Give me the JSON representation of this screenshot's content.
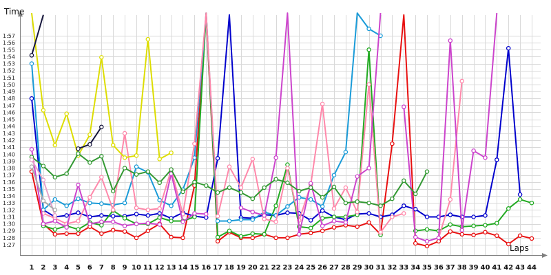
{
  "chart_data": {
    "type": "line",
    "xlabel": "Laps",
    "ylabel": "Time",
    "xlim": [
      1,
      44
    ],
    "ylim": [
      "1:27",
      "1:58"
    ],
    "grid": true,
    "legend": "none",
    "x_ticks": [
      "1",
      "2",
      "3",
      "4",
      "5",
      "6",
      "7",
      "8",
      "9",
      "10",
      "11",
      "12",
      "13",
      "14",
      "15",
      "16",
      "17",
      "18",
      "19",
      "20",
      "21",
      "22",
      "23",
      "24",
      "25",
      "26",
      "27",
      "28",
      "29",
      "30",
      "31",
      "32",
      "33",
      "34",
      "35",
      "36",
      "37",
      "38",
      "39",
      "40",
      "41",
      "42",
      "43",
      "44"
    ],
    "y_ticks": [
      "1:27",
      "1:28",
      "1:29",
      "1:30",
      "1:31",
      "1:32",
      "1:33",
      "1:34",
      "1:35",
      "1:36",
      "1:37",
      "1:38",
      "1:39",
      "1:40",
      "1:41",
      "1:42",
      "1:43",
      "1:44",
      "1:45",
      "1:46",
      "1:47",
      "1:48",
      "1:49",
      "1:50",
      "1:51",
      "1:52",
      "1:53",
      "1:54",
      "1:55",
      "1:56",
      "1:57"
    ],
    "series": [
      {
        "color": "#e81010",
        "values": [
          97.5,
          90,
          88.5,
          88.6,
          88.6,
          89.6,
          88.6,
          89.1,
          88.9,
          88,
          89,
          90,
          88.1,
          88,
          95.5,
          120,
          87.5,
          88.8,
          88,
          88,
          88.5,
          88,
          88,
          88.5,
          88.7,
          89,
          89.5,
          89.8,
          89.6,
          90.2,
          88.5,
          101.5,
          120,
          87.2,
          86.8,
          87.5,
          88.9,
          88.5,
          88.4,
          88.8,
          88.3,
          87.1,
          88.3,
          87.9
        ]
      },
      {
        "color": "#0000cc",
        "values": [
          108,
          92,
          91,
          91.2,
          91.6,
          91,
          91.2,
          91.1,
          91.1,
          91.4,
          91.2,
          91.5,
          90.8,
          91.6,
          91.1,
          90.9,
          99.4,
          120,
          90.9,
          90.8,
          91.3,
          91.2,
          91.6,
          91.5,
          90.5,
          91.9,
          91,
          90.6,
          91.4,
          91.5,
          91,
          91.3,
          92.6,
          92.1,
          91,
          91,
          91.3,
          91,
          91,
          91.2,
          99.2,
          115.2,
          94.2,
          null
        ]
      },
      {
        "color": "#22aa22",
        "values": [
          null,
          89.7,
          89.2,
          89.7,
          89.2,
          90.2,
          89.8,
          91.9,
          90.8,
          90,
          90,
          90.9,
          90.4,
          90.4,
          91,
          121,
          88.1,
          89,
          88.2,
          88.6,
          88.5,
          92.6,
          98.5,
          89.6,
          89.4,
          90.8,
          91,
          91,
          91.3,
          115,
          88.4,
          null,
          null,
          89,
          89.2,
          89,
          89.9,
          89.6,
          89.7,
          89.8,
          90.1,
          92.2,
          93.5,
          93
        ]
      },
      {
        "color": "#1a9bd8",
        "values": [
          113,
          92,
          93.5,
          92.6,
          93.6,
          93,
          92.9,
          92.7,
          93,
          98.2,
          97.4,
          93.4,
          92.6,
          94.9,
          99.5,
          121,
          90.4,
          90.4,
          90.6,
          90.6,
          91.7,
          91.2,
          92.5,
          93.8,
          93.5,
          92.5,
          97,
          100.3,
          121,
          118,
          117,
          null,
          null,
          null,
          null,
          null,
          null,
          null,
          null,
          null,
          null,
          null,
          null,
          null
        ]
      },
      {
        "color": "#ff88aa",
        "values": [
          null,
          91.5,
          90.8,
          90,
          90.4,
          93.8,
          96.7,
          92,
          103,
          92.3,
          92,
          92.2,
          97.8,
          91.4,
          101.5,
          121,
          91.1,
          98.2,
          95.2,
          99.3,
          90.7,
          90.3,
          98,
          90.5,
          95.6,
          107.2,
          92.2,
          95.2,
          91.7,
          110,
          88.8,
          91,
          91.5,
          null,
          null,
          88,
          93.5,
          110.5,
          null,
          null,
          null,
          null,
          null,
          null
        ]
      },
      {
        "color": "#cc44cc",
        "values": [
          100.7,
          90,
          90.4,
          89.5,
          95.6,
          90,
          90.3,
          90.3,
          89.7,
          90,
          90.1,
          89.9,
          97.2,
          90.3,
          91.5,
          91.4,
          null,
          null,
          92.3,
          91.7,
          91.2,
          99.5,
          121,
          88.5,
          95.8,
          89.7,
          90.4,
          90.2,
          96.8,
          98,
          121,
          null,
          106.8,
          88.1,
          87.5,
          88,
          116.3,
          89.1,
          100.5,
          99.5,
          121,
          null,
          null,
          null
        ]
      },
      {
        "color": "#dddd00",
        "values": [
          125,
          106.3,
          101.3,
          105.8,
          99.8,
          102.8,
          113.9,
          101.3,
          99.5,
          99.8,
          116.5,
          99.3,
          100.2,
          null,
          null,
          null,
          null,
          null,
          null,
          null,
          null,
          null,
          null,
          null,
          null,
          null,
          null,
          null,
          null,
          null,
          null,
          null,
          null,
          null,
          null,
          null,
          null,
          null,
          null,
          null,
          null,
          null,
          null,
          null
        ]
      },
      {
        "color": "#339933",
        "values": [
          99.6,
          98.3,
          96.7,
          97.2,
          100.1,
          98.8,
          99.7,
          94.7,
          98,
          97.1,
          97.5,
          95.9,
          97.8,
          94.6,
          96,
          95.5,
          94.5,
          95.2,
          94.5,
          93.6,
          95.2,
          96.4,
          95.9,
          94.7,
          95.2,
          93.8,
          95.3,
          93,
          93.2,
          93,
          92.6,
          93.6,
          96.2,
          94.3,
          97.5,
          null,
          null,
          null,
          null,
          null,
          null,
          null,
          null,
          null
        ]
      },
      {
        "color": "#16163c",
        "values": [
          114.2,
          120,
          null,
          null,
          100.8,
          101.4,
          103.9,
          null,
          null,
          null,
          null,
          null,
          null,
          null,
          null,
          null,
          null,
          null,
          null,
          null,
          null,
          null,
          null,
          null,
          null,
          null,
          null,
          null,
          null,
          null,
          null,
          null,
          null,
          null,
          null,
          null,
          null,
          null,
          null,
          null,
          null,
          null,
          null,
          null
        ]
      },
      {
        "color": "#e8a0c8",
        "values": [
          99.2,
          96.3,
          91.2,
          null,
          null,
          null,
          null,
          null,
          null,
          null,
          null,
          null,
          null,
          null,
          null,
          null,
          null,
          null,
          null,
          null,
          null,
          null,
          null,
          null,
          null,
          null,
          null,
          null,
          null,
          null,
          null,
          null,
          null,
          null,
          null,
          null,
          null,
          null,
          null,
          null,
          null,
          null,
          null,
          null
        ]
      },
      {
        "color": "#aaaaaa",
        "values": [
          98.2,
          93.3,
          92,
          null,
          null,
          null,
          null,
          null,
          null,
          null,
          null,
          null,
          null,
          null,
          null,
          null,
          null,
          null,
          null,
          null,
          null,
          null,
          null,
          null,
          null,
          null,
          null,
          null,
          null,
          null,
          null,
          null,
          null,
          null,
          null,
          null,
          null,
          null,
          null,
          null,
          null,
          null,
          null,
          null
        ]
      }
    ]
  }
}
